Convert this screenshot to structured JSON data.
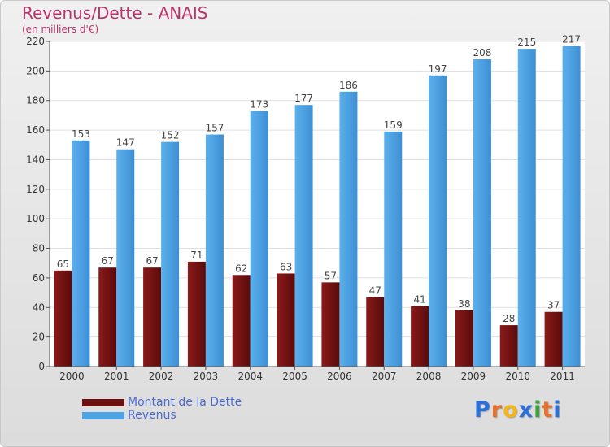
{
  "title": "Revenus/Dette - ANAIS",
  "subtitle": "(en milliers d'€)",
  "colors": {
    "dette": "#6b0f0f",
    "revenus": "#4ea3e2",
    "title": "#b8336a",
    "legend_text": "#4a6ad0"
  },
  "legend": {
    "dette_label": "Montant de la Dette",
    "revenus_label": "Revenus"
  },
  "logo": {
    "text": "Proxiti",
    "letter_colors": [
      "#2a6fdb",
      "#e8702a",
      "#f2b51b",
      "#2a6fdb",
      "#3aa33a",
      "#e8702a",
      "#2a6fdb"
    ]
  },
  "chart_data": {
    "type": "bar",
    "categories": [
      "2000",
      "2001",
      "2002",
      "2003",
      "2004",
      "2005",
      "2006",
      "2007",
      "2008",
      "2009",
      "2010",
      "2011"
    ],
    "series": [
      {
        "name": "Montant de la Dette",
        "values": [
          65,
          67,
          67,
          71,
          62,
          63,
          57,
          47,
          41,
          38,
          28,
          37
        ]
      },
      {
        "name": "Revenus",
        "values": [
          153,
          147,
          152,
          157,
          173,
          177,
          186,
          159,
          197,
          208,
          215,
          217
        ]
      }
    ],
    "ylim": [
      0,
      220
    ],
    "yticks": [
      0,
      20,
      40,
      60,
      80,
      100,
      120,
      140,
      160,
      180,
      200,
      220
    ],
    "grid": true,
    "legend_position": "bottom-left"
  }
}
